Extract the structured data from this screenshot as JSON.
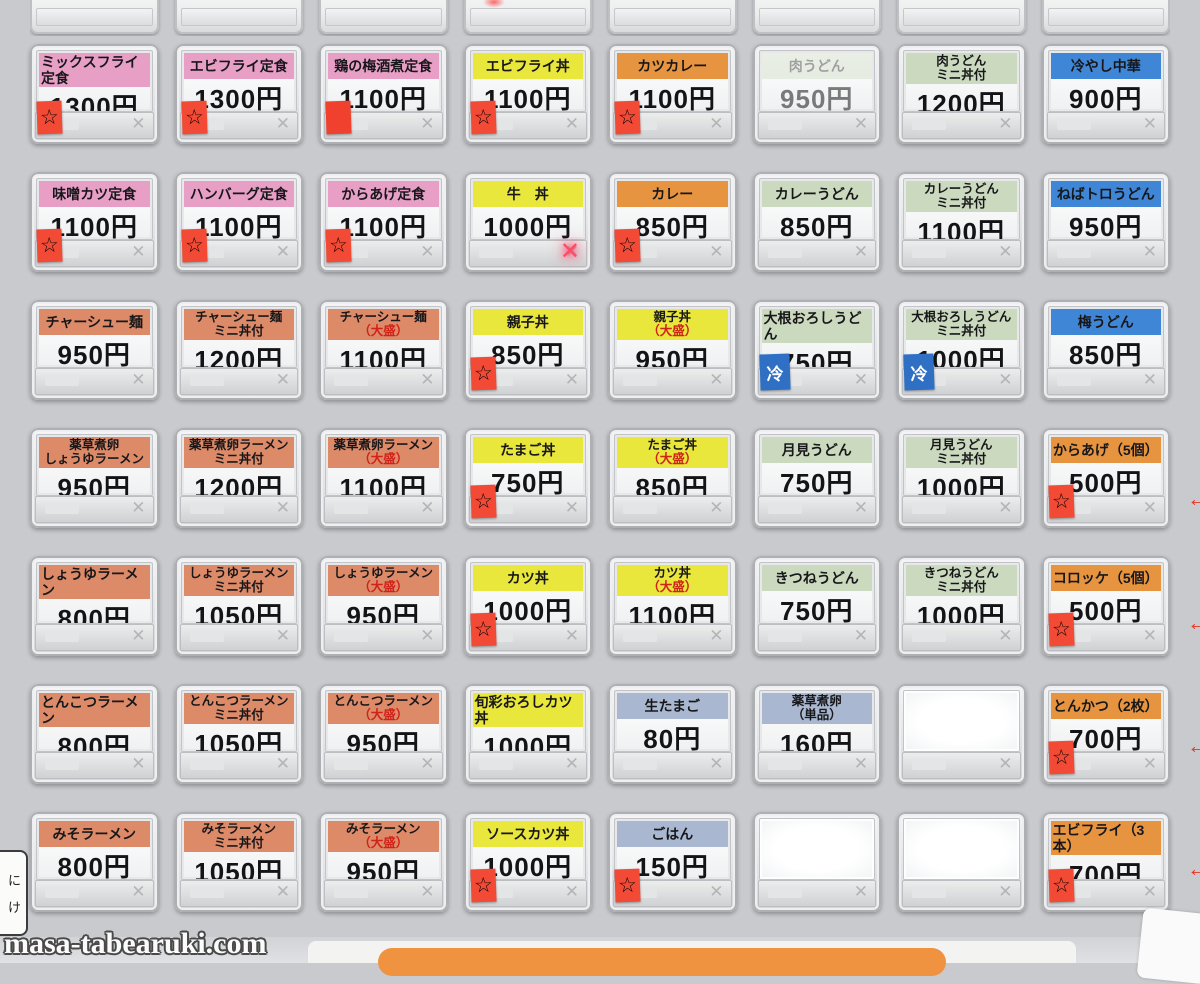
{
  "machine": {
    "watermark": "masa-tabearuki.com",
    "flap_mark": "✕",
    "sold_out_mark": "✕",
    "side_arrow_glyph": "←",
    "side_label_lines": [
      "に",
      "け"
    ]
  },
  "colors": {
    "pink": "#e79fc6",
    "yellow": "#e9e63c",
    "orange": "#e79441",
    "salmon": "#dd8a68",
    "green": "#cbd9bf",
    "blue": "#3f86d6",
    "bluegray": "#a9b8d0"
  },
  "sticker_glyphs": {
    "star": "☆",
    "cold": "冷",
    "red": ""
  },
  "grid": {
    "rows": 7,
    "cols": 8,
    "items": [
      {
        "label": "ミックスフライ定食",
        "price": "1300円",
        "color": "pink",
        "stickers": [
          "star"
        ]
      },
      {
        "label": "エビフライ定食",
        "price": "1300円",
        "color": "pink",
        "stickers": [
          "star"
        ]
      },
      {
        "label": "鶏の梅酒煮定食",
        "price": "1100円",
        "color": "pink",
        "stickers": [
          "red"
        ]
      },
      {
        "label": "エビフライ丼",
        "price": "1100円",
        "color": "yellow",
        "stickers": [
          "star"
        ]
      },
      {
        "label": "カツカレー",
        "price": "1100円",
        "color": "orange",
        "stickers": [
          "star"
        ]
      },
      {
        "label": "肉うどん",
        "price": "950円",
        "color": "green",
        "faded": true
      },
      {
        "label": "肉うどん",
        "label2": "ミニ丼付",
        "price": "1200円",
        "color": "green"
      },
      {
        "label": "冷やし中華",
        "price": "900円",
        "color": "blue"
      },
      {
        "label": "味噌カツ定食",
        "price": "1100円",
        "color": "pink",
        "stickers": [
          "star"
        ]
      },
      {
        "label": "ハンバーグ定食",
        "price": "1100円",
        "color": "pink",
        "stickers": [
          "star"
        ]
      },
      {
        "label": "からあげ定食",
        "price": "1100円",
        "color": "pink",
        "stickers": [
          "star"
        ]
      },
      {
        "label": "牛　丼",
        "price": "1000円",
        "color": "yellow",
        "sold_out": true
      },
      {
        "label": "カレー",
        "price": "850円",
        "color": "orange",
        "stickers": [
          "star"
        ]
      },
      {
        "label": "カレーうどん",
        "price": "850円",
        "color": "green"
      },
      {
        "label": "カレーうどん",
        "label2": "ミニ丼付",
        "price": "1100円",
        "color": "green"
      },
      {
        "label": "ねばトロうどん",
        "price": "950円",
        "color": "blue"
      },
      {
        "label": "チャーシュー麺",
        "price": "950円",
        "color": "salmon"
      },
      {
        "label": "チャーシュー麺",
        "label2": "ミニ丼付",
        "price": "1200円",
        "color": "salmon"
      },
      {
        "label": "チャーシュー麺",
        "label2": "（大盛）",
        "label2_red": true,
        "price": "1100円",
        "color": "salmon"
      },
      {
        "label": "親子丼",
        "price": "850円",
        "color": "yellow",
        "stickers": [
          "star"
        ]
      },
      {
        "label": "親子丼",
        "label2": "（大盛）",
        "label2_red": true,
        "price": "950円",
        "color": "yellow"
      },
      {
        "label": "大根おろしうどん",
        "price": "750円",
        "color": "green",
        "stickers": [
          "cold"
        ]
      },
      {
        "label": "大根おろしうどん",
        "label2": "ミニ丼付",
        "price": "1000円",
        "color": "green",
        "stickers": [
          "cold"
        ]
      },
      {
        "label": "梅うどん",
        "price": "850円",
        "color": "blue"
      },
      {
        "label": "薬草煮卵",
        "label2": "しょうゆラーメン",
        "price": "950円",
        "color": "salmon"
      },
      {
        "label": "薬草煮卵ラーメン",
        "label2": "ミニ丼付",
        "price": "1200円",
        "color": "salmon"
      },
      {
        "label": "薬草煮卵ラーメン",
        "label2": "（大盛）",
        "label2_red": true,
        "price": "1100円",
        "color": "salmon"
      },
      {
        "label": "たまご丼",
        "price": "750円",
        "color": "yellow",
        "stickers": [
          "star"
        ]
      },
      {
        "label": "たまご丼",
        "label2": "（大盛）",
        "label2_red": true,
        "price": "850円",
        "color": "yellow"
      },
      {
        "label": "月見うどん",
        "price": "750円",
        "color": "green"
      },
      {
        "label": "月見うどん",
        "label2": "ミニ丼付",
        "price": "1000円",
        "color": "green"
      },
      {
        "label": "からあげ（5個）",
        "price": "500円",
        "color": "orange",
        "stickers": [
          "star"
        ]
      },
      {
        "label": "しょうゆラーメン",
        "price": "800円",
        "color": "salmon"
      },
      {
        "label": "しょうゆラーメン",
        "label2": "ミニ丼付",
        "price": "1050円",
        "color": "salmon"
      },
      {
        "label": "しょうゆラーメン",
        "label2": "（大盛）",
        "label2_red": true,
        "price": "950円",
        "color": "salmon"
      },
      {
        "label": "カツ丼",
        "price": "1000円",
        "color": "yellow",
        "stickers": [
          "star"
        ]
      },
      {
        "label": "カツ丼",
        "label2": "（大盛）",
        "label2_red": true,
        "price": "1100円",
        "color": "yellow"
      },
      {
        "label": "きつねうどん",
        "price": "750円",
        "color": "green"
      },
      {
        "label": "きつねうどん",
        "label2": "ミニ丼付",
        "price": "1000円",
        "color": "green"
      },
      {
        "label": "コロッケ（5個）",
        "price": "500円",
        "color": "orange",
        "stickers": [
          "star"
        ]
      },
      {
        "label": "とんこつラーメン",
        "price": "800円",
        "color": "salmon"
      },
      {
        "label": "とんこつラーメン",
        "label2": "ミニ丼付",
        "price": "1050円",
        "color": "salmon"
      },
      {
        "label": "とんこつラーメン",
        "label2": "（大盛）",
        "label2_red": true,
        "price": "950円",
        "color": "salmon"
      },
      {
        "label": "旬彩おろしカツ丼",
        "price": "1000円",
        "color": "yellow"
      },
      {
        "label": "生たまご",
        "price": "80円",
        "color": "bluegray"
      },
      {
        "label": "薬草煮卵",
        "label2": "（単品）",
        "price": "160円",
        "color": "bluegray"
      },
      {
        "blank": true
      },
      {
        "label": "とんかつ（2枚）",
        "price": "700円",
        "color": "orange",
        "stickers": [
          "star"
        ]
      },
      {
        "label": "みそラーメン",
        "price": "800円",
        "color": "salmon"
      },
      {
        "label": "みそラーメン",
        "label2": "ミニ丼付",
        "price": "1050円",
        "color": "salmon"
      },
      {
        "label": "みそラーメン",
        "label2": "（大盛）",
        "label2_red": true,
        "price": "950円",
        "color": "salmon"
      },
      {
        "label": "ソースカツ丼",
        "price": "1000円",
        "color": "yellow",
        "stickers": [
          "star"
        ]
      },
      {
        "label": "ごはん",
        "price": "150円",
        "color": "bluegray",
        "stickers": [
          "star"
        ]
      },
      {
        "blank": true
      },
      {
        "blank": true
      },
      {
        "label": "エビフライ（3本）",
        "price": "700円",
        "color": "orange",
        "stickers": [
          "star"
        ]
      }
    ]
  }
}
